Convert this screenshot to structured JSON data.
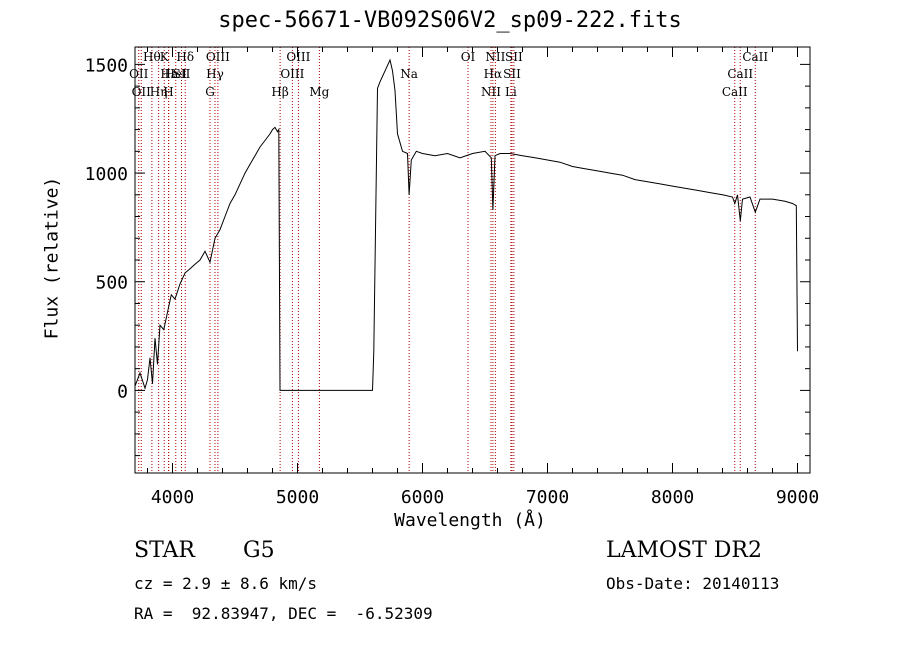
{
  "chart_data": {
    "type": "line",
    "title": "spec-56671-VB092S06V2_sp09-222.fits",
    "xlabel": "Wavelength (Å)",
    "ylabel": "Flux (relative)",
    "xlim": [
      3700,
      9100
    ],
    "ylim": [
      -380,
      1580
    ],
    "xticks": [
      4000,
      5000,
      6000,
      7000,
      8000,
      9000
    ],
    "yticks": [
      0,
      500,
      1000,
      1500
    ],
    "grid": false,
    "series": [
      {
        "x": [
          3700,
          3740,
          3780,
          3800,
          3820,
          3840,
          3860,
          3880,
          3900,
          3930,
          3960,
          3990,
          4020,
          4060,
          4100,
          4140,
          4180,
          4220,
          4260,
          4300,
          4340,
          4380,
          4420,
          4460,
          4500,
          4540,
          4580,
          4620,
          4660,
          4700,
          4740,
          4780,
          4800,
          4820,
          4840,
          4850,
          4860,
          5600,
          5610,
          5640,
          5660,
          5700,
          5740,
          5760,
          5780,
          5800,
          5840,
          5880,
          5893,
          5910,
          5950,
          6000,
          6100,
          6200,
          6300,
          6400,
          6500,
          6550,
          6563,
          6580,
          6620,
          6700,
          6800,
          6900,
          7000,
          7100,
          7200,
          7300,
          7400,
          7500,
          7600,
          7700,
          7800,
          7900,
          8000,
          8100,
          8200,
          8300,
          8400,
          8480,
          8498,
          8520,
          8542,
          8560,
          8620,
          8662,
          8700,
          8800,
          8900,
          8960,
          8990,
          9000
        ],
        "y": [
          20,
          80,
          10,
          50,
          150,
          30,
          240,
          120,
          300,
          280,
          360,
          440,
          420,
          490,
          540,
          560,
          580,
          600,
          640,
          590,
          700,
          740,
          800,
          860,
          900,
          950,
          1000,
          1040,
          1080,
          1120,
          1150,
          1180,
          1200,
          1210,
          1190,
          1200,
          0,
          0,
          180,
          1390,
          1420,
          1470,
          1520,
          1470,
          1380,
          1180,
          1100,
          1090,
          900,
          1060,
          1100,
          1090,
          1080,
          1090,
          1070,
          1090,
          1100,
          1070,
          830,
          1080,
          1090,
          1090,
          1080,
          1070,
          1060,
          1050,
          1030,
          1020,
          1010,
          1000,
          990,
          970,
          960,
          950,
          940,
          930,
          920,
          910,
          900,
          890,
          860,
          900,
          780,
          880,
          890,
          820,
          880,
          880,
          870,
          860,
          850,
          180
        ]
      }
    ],
    "lines": [
      {
        "x": 3730,
        "label": "OII",
        "row": 2
      },
      {
        "x": 3750,
        "label": "OII",
        "row": 3
      },
      {
        "x": 3835,
        "label": "Hθ",
        "row": 1
      },
      {
        "x": 3889,
        "label": "Hη",
        "row": 3
      },
      {
        "x": 3934,
        "label": "K",
        "row": 1
      },
      {
        "x": 3968,
        "label": "H",
        "row": 3
      },
      {
        "x": 3970,
        "label": "Hε",
        "row": 2
      },
      {
        "x": 4026,
        "label": "HeI",
        "row": 2
      },
      {
        "x": 4072,
        "label": "SII",
        "row": 2
      },
      {
        "x": 4102,
        "label": "Hδ",
        "row": 1
      },
      {
        "x": 4300,
        "label": "G",
        "row": 3
      },
      {
        "x": 4340,
        "label": "Hγ",
        "row": 2
      },
      {
        "x": 4363,
        "label": "OIII",
        "row": 1
      },
      {
        "x": 4861,
        "label": "Hβ",
        "row": 3
      },
      {
        "x": 4959,
        "label": "OIII",
        "row": 2
      },
      {
        "x": 5007,
        "label": "OIII",
        "row": 1
      },
      {
        "x": 5175,
        "label": "Mg",
        "row": 3
      },
      {
        "x": 5893,
        "label": "Na",
        "row": 2
      },
      {
        "x": 6364,
        "label": "OI",
        "row": 1
      },
      {
        "x": 6548,
        "label": "NII",
        "row": 3
      },
      {
        "x": 6563,
        "label": "Hα",
        "row": 2
      },
      {
        "x": 6583,
        "label": "NII",
        "row": 1
      },
      {
        "x": 6707,
        "label": "Li",
        "row": 3
      },
      {
        "x": 6716,
        "label": "SII",
        "row": 2
      },
      {
        "x": 6731,
        "label": "SII",
        "row": 1
      },
      {
        "x": 8498,
        "label": "CaII",
        "row": 3
      },
      {
        "x": 8542,
        "label": "CaII",
        "row": 2
      },
      {
        "x": 8662,
        "label": "CaII",
        "row": 1
      }
    ]
  },
  "info": {
    "object_class": "STAR",
    "subclass": "G5",
    "survey": "LAMOST DR2",
    "cz": "cz = 2.9 ± 8.6 km/s",
    "obs_date": "Obs-Date: 20140113",
    "coords": "RA =  92.83947, DEC =  -6.52309"
  }
}
